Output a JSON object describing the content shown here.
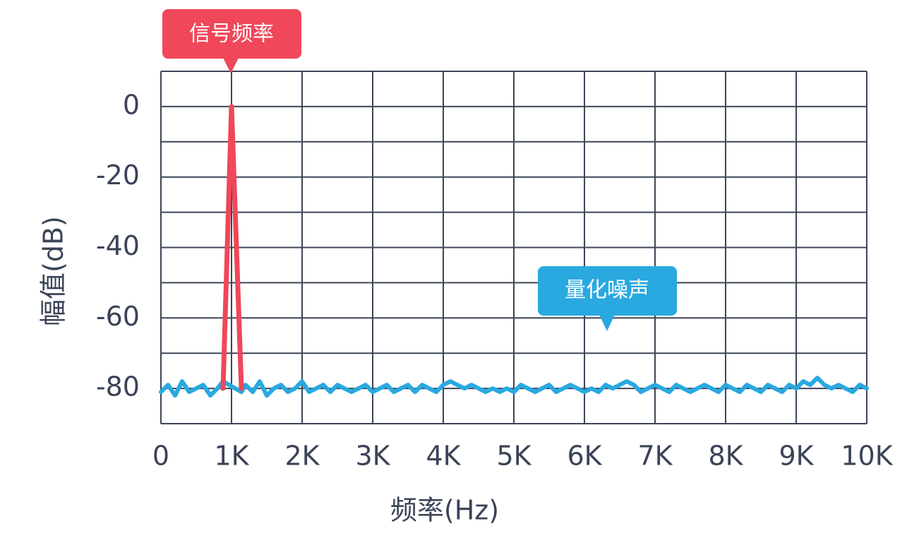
{
  "chart_data": {
    "type": "line",
    "xlabel": "频率(Hz)",
    "ylabel": "幅值(dB)",
    "xlim": [
      0,
      10000
    ],
    "ylim": [
      -90,
      10
    ],
    "grid": true,
    "x_tick_values": [
      0,
      1000,
      2000,
      3000,
      4000,
      5000,
      6000,
      7000,
      8000,
      9000,
      10000
    ],
    "x_tick_labels": [
      "0",
      "1K",
      "2K",
      "3K",
      "4K",
      "5K",
      "6K",
      "7K",
      "8K",
      "9K",
      "10K"
    ],
    "y_tick_values": [
      0,
      -20,
      -40,
      -60,
      -80
    ],
    "y_tick_labels": [
      "0",
      "-20",
      "-40",
      "-60",
      "-80"
    ],
    "series": [
      {
        "name": "信号频率",
        "color": "#f0475a",
        "x": [
          880,
          1000,
          1140
        ],
        "y": [
          -80,
          0,
          -80
        ]
      },
      {
        "name": "量化噪声",
        "color": "#29a9e0",
        "x": [
          0,
          100,
          200,
          300,
          400,
          500,
          600,
          700,
          800,
          880,
          1140,
          1200,
          1300,
          1400,
          1500,
          1600,
          1700,
          1800,
          1900,
          2000,
          2100,
          2200,
          2300,
          2400,
          2500,
          2600,
          2700,
          2800,
          2900,
          3000,
          3100,
          3200,
          3300,
          3400,
          3500,
          3600,
          3700,
          3800,
          3900,
          4000,
          4100,
          4200,
          4300,
          4400,
          4500,
          4600,
          4700,
          4800,
          4900,
          5000,
          5100,
          5200,
          5300,
          5400,
          5500,
          5600,
          5700,
          5800,
          5900,
          6000,
          6100,
          6200,
          6300,
          6400,
          6500,
          6600,
          6700,
          6800,
          6900,
          7000,
          7100,
          7200,
          7300,
          7400,
          7500,
          7600,
          7700,
          7800,
          7900,
          8000,
          8100,
          8200,
          8300,
          8400,
          8500,
          8600,
          8700,
          8800,
          8900,
          9000,
          9100,
          9200,
          9300,
          9400,
          9500,
          9600,
          9700,
          9800,
          9900,
          10000
        ],
        "y": [
          -81,
          -79,
          -82,
          -78,
          -81,
          -80,
          -79,
          -82,
          -80,
          -78,
          -81,
          -79,
          -81,
          -78,
          -82,
          -80,
          -79,
          -81,
          -80,
          -78,
          -81,
          -80,
          -79,
          -81,
          -79,
          -80,
          -81,
          -80,
          -79,
          -81,
          -80,
          -79,
          -81,
          -80,
          -79,
          -81,
          -79,
          -80,
          -81,
          -79,
          -78,
          -79,
          -80,
          -79,
          -80,
          -81,
          -80,
          -81,
          -80,
          -81,
          -79,
          -80,
          -81,
          -80,
          -79,
          -81,
          -80,
          -79,
          -80,
          -81,
          -80,
          -81,
          -79,
          -80,
          -79,
          -78,
          -79,
          -81,
          -80,
          -79,
          -80,
          -81,
          -79,
          -80,
          -81,
          -80,
          -79,
          -80,
          -81,
          -79,
          -80,
          -81,
          -79,
          -80,
          -81,
          -79,
          -80,
          -81,
          -79,
          -80,
          -78,
          -79,
          -77,
          -79,
          -80,
          -79,
          -80,
          -81,
          -79,
          -80
        ]
      }
    ],
    "annotations": [
      {
        "text": "信号频率",
        "color": "#f0475a",
        "points_to": {
          "x": 1000,
          "y": 10
        }
      },
      {
        "text": "量化噪声",
        "color": "#29a9e0",
        "points_to": {
          "x": 6300,
          "y": -74
        }
      }
    ]
  }
}
